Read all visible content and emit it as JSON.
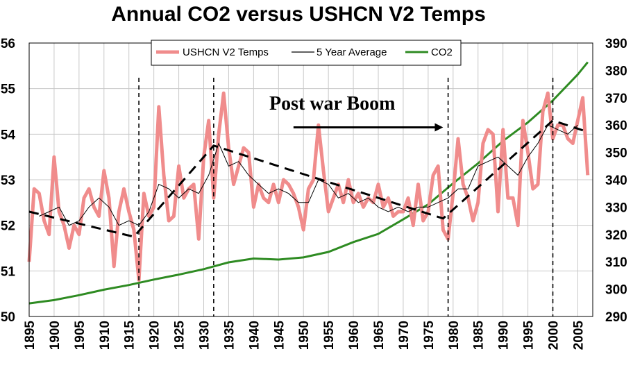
{
  "chart_data": {
    "type": "line",
    "title": "Annual CO2 versus USHCN V2 Temps",
    "xlim": [
      1895,
      2008
    ],
    "ylim_left": [
      50,
      56
    ],
    "ylim_right": [
      290,
      390
    ],
    "left_ticks": [
      "50",
      "51",
      "52",
      "53",
      "54",
      "55",
      "56"
    ],
    "right_ticks": [
      "290",
      "300",
      "310",
      "320",
      "330",
      "340",
      "350",
      "360",
      "370",
      "380",
      "390"
    ],
    "x_ticks": [
      "1895",
      "1900",
      "1905",
      "1910",
      "1915",
      "1920",
      "1925",
      "1930",
      "1935",
      "1940",
      "1945",
      "1950",
      "1955",
      "1960",
      "1965",
      "1970",
      "1975",
      "1980",
      "1985",
      "1990",
      "1995",
      "2000",
      "2005"
    ],
    "grid": true,
    "legend_position": "top-center",
    "legend": [
      "USHCN V2 Temps",
      "5 Year Average",
      "CO2"
    ],
    "colors": {
      "temps": "#f08c8c",
      "average": "#000000",
      "co2": "#2e8b22",
      "grid": "#c8c8c8",
      "trend": "#000000"
    },
    "annotation": {
      "text": "Post war Boom",
      "arrow_from_year": 1948,
      "arrow_to_year": 1978,
      "arrow_temp": 54.15
    },
    "vertical_markers": [
      1917,
      1932,
      1979,
      2000
    ],
    "series": [
      {
        "name": "USHCN V2 Temps",
        "axis": "left",
        "x": [
          1895,
          1896,
          1897,
          1898,
          1899,
          1900,
          1901,
          1902,
          1903,
          1904,
          1905,
          1906,
          1907,
          1908,
          1909,
          1910,
          1911,
          1912,
          1913,
          1914,
          1915,
          1916,
          1917,
          1918,
          1919,
          1920,
          1921,
          1922,
          1923,
          1924,
          1925,
          1926,
          1927,
          1928,
          1929,
          1930,
          1931,
          1932,
          1933,
          1934,
          1935,
          1936,
          1937,
          1938,
          1939,
          1940,
          1941,
          1942,
          1943,
          1944,
          1945,
          1946,
          1947,
          1948,
          1949,
          1950,
          1951,
          1952,
          1953,
          1954,
          1955,
          1956,
          1957,
          1958,
          1959,
          1960,
          1961,
          1962,
          1963,
          1964,
          1965,
          1966,
          1967,
          1968,
          1969,
          1970,
          1971,
          1972,
          1973,
          1974,
          1975,
          1976,
          1977,
          1978,
          1979,
          1980,
          1981,
          1982,
          1983,
          1984,
          1985,
          1986,
          1987,
          1988,
          1989,
          1990,
          1991,
          1992,
          1993,
          1994,
          1995,
          1996,
          1997,
          1998,
          1999,
          2000,
          2001,
          2002,
          2003,
          2004,
          2005,
          2006,
          2007
        ],
        "values": [
          51.2,
          52.8,
          52.7,
          52.1,
          51.8,
          53.5,
          52.3,
          52.0,
          51.5,
          52.0,
          51.8,
          52.6,
          52.8,
          52.4,
          52.2,
          53.2,
          52.6,
          51.1,
          52.3,
          52.8,
          52.3,
          51.9,
          50.8,
          52.7,
          52.2,
          52.4,
          54.6,
          53.1,
          52.1,
          52.2,
          53.3,
          52.6,
          52.8,
          52.9,
          51.7,
          53.5,
          54.3,
          52.6,
          54.0,
          54.9,
          53.7,
          52.9,
          53.3,
          53.7,
          53.6,
          52.4,
          52.9,
          52.6,
          52.5,
          52.9,
          52.5,
          53.0,
          52.9,
          52.7,
          52.4,
          51.9,
          52.8,
          53.0,
          54.2,
          53.2,
          52.3,
          52.6,
          52.9,
          52.5,
          53.0,
          52.5,
          52.7,
          52.4,
          52.6,
          52.5,
          52.9,
          52.4,
          52.6,
          52.2,
          52.3,
          52.3,
          52.6,
          52.0,
          52.9,
          52.1,
          52.3,
          53.1,
          53.3,
          51.9,
          51.7,
          52.7,
          53.9,
          52.9,
          52.6,
          52.1,
          52.5,
          53.8,
          54.1,
          54.0,
          52.3,
          54.1,
          52.6,
          52.6,
          52.0,
          54.3,
          53.6,
          52.8,
          52.9,
          54.5,
          54.9,
          53.9,
          54.2,
          54.2,
          53.9,
          53.8,
          54.3,
          54.8,
          53.1
        ]
      },
      {
        "name": "5 Year Average",
        "axis": "left",
        "x": [
          1897,
          1899,
          1901,
          1903,
          1905,
          1907,
          1909,
          1911,
          1913,
          1915,
          1917,
          1919,
          1921,
          1923,
          1925,
          1927,
          1929,
          1931,
          1933,
          1935,
          1937,
          1939,
          1941,
          1943,
          1945,
          1947,
          1949,
          1951,
          1953,
          1955,
          1957,
          1959,
          1961,
          1963,
          1965,
          1967,
          1969,
          1971,
          1973,
          1975,
          1977,
          1979,
          1981,
          1983,
          1985,
          1987,
          1989,
          1991,
          1993,
          1995,
          1997,
          1999,
          2001,
          2003,
          2005
        ],
        "values": [
          52.2,
          52.3,
          52.4,
          52.0,
          52.1,
          52.4,
          52.6,
          52.4,
          52.0,
          52.1,
          52.0,
          52.3,
          52.9,
          52.8,
          52.6,
          52.8,
          52.7,
          53.1,
          53.8,
          53.3,
          53.4,
          53.1,
          52.9,
          52.7,
          52.8,
          52.7,
          52.5,
          52.5,
          53.0,
          52.9,
          52.6,
          52.7,
          52.5,
          52.6,
          52.4,
          52.3,
          52.4,
          52.3,
          52.4,
          52.4,
          52.5,
          52.6,
          52.8,
          52.8,
          53.3,
          53.4,
          53.5,
          53.3,
          53.1,
          53.5,
          53.8,
          54.2,
          54.1,
          54.0,
          54.2
        ]
      },
      {
        "name": "CO2",
        "axis": "right",
        "x": [
          1895,
          1900,
          1905,
          1910,
          1915,
          1920,
          1925,
          1930,
          1935,
          1940,
          1945,
          1950,
          1955,
          1960,
          1965,
          1970,
          1975,
          1980,
          1985,
          1990,
          1995,
          2000,
          2005,
          2007
        ],
        "values": [
          294.8,
          296,
          297.8,
          299.8,
          301.5,
          303.5,
          305.3,
          307.3,
          309.8,
          311.2,
          310.8,
          311.6,
          313.6,
          317.2,
          320.2,
          325.5,
          331,
          338.7,
          346,
          354.2,
          361,
          369,
          378.5,
          383
        ]
      }
    ],
    "trend_lines": [
      {
        "x": [
          1895,
          1916,
          1932,
          1978,
          2000,
          2007
        ],
        "values": [
          52.3,
          51.75,
          53.75,
          52.15,
          54.3,
          54.05
        ]
      }
    ]
  }
}
